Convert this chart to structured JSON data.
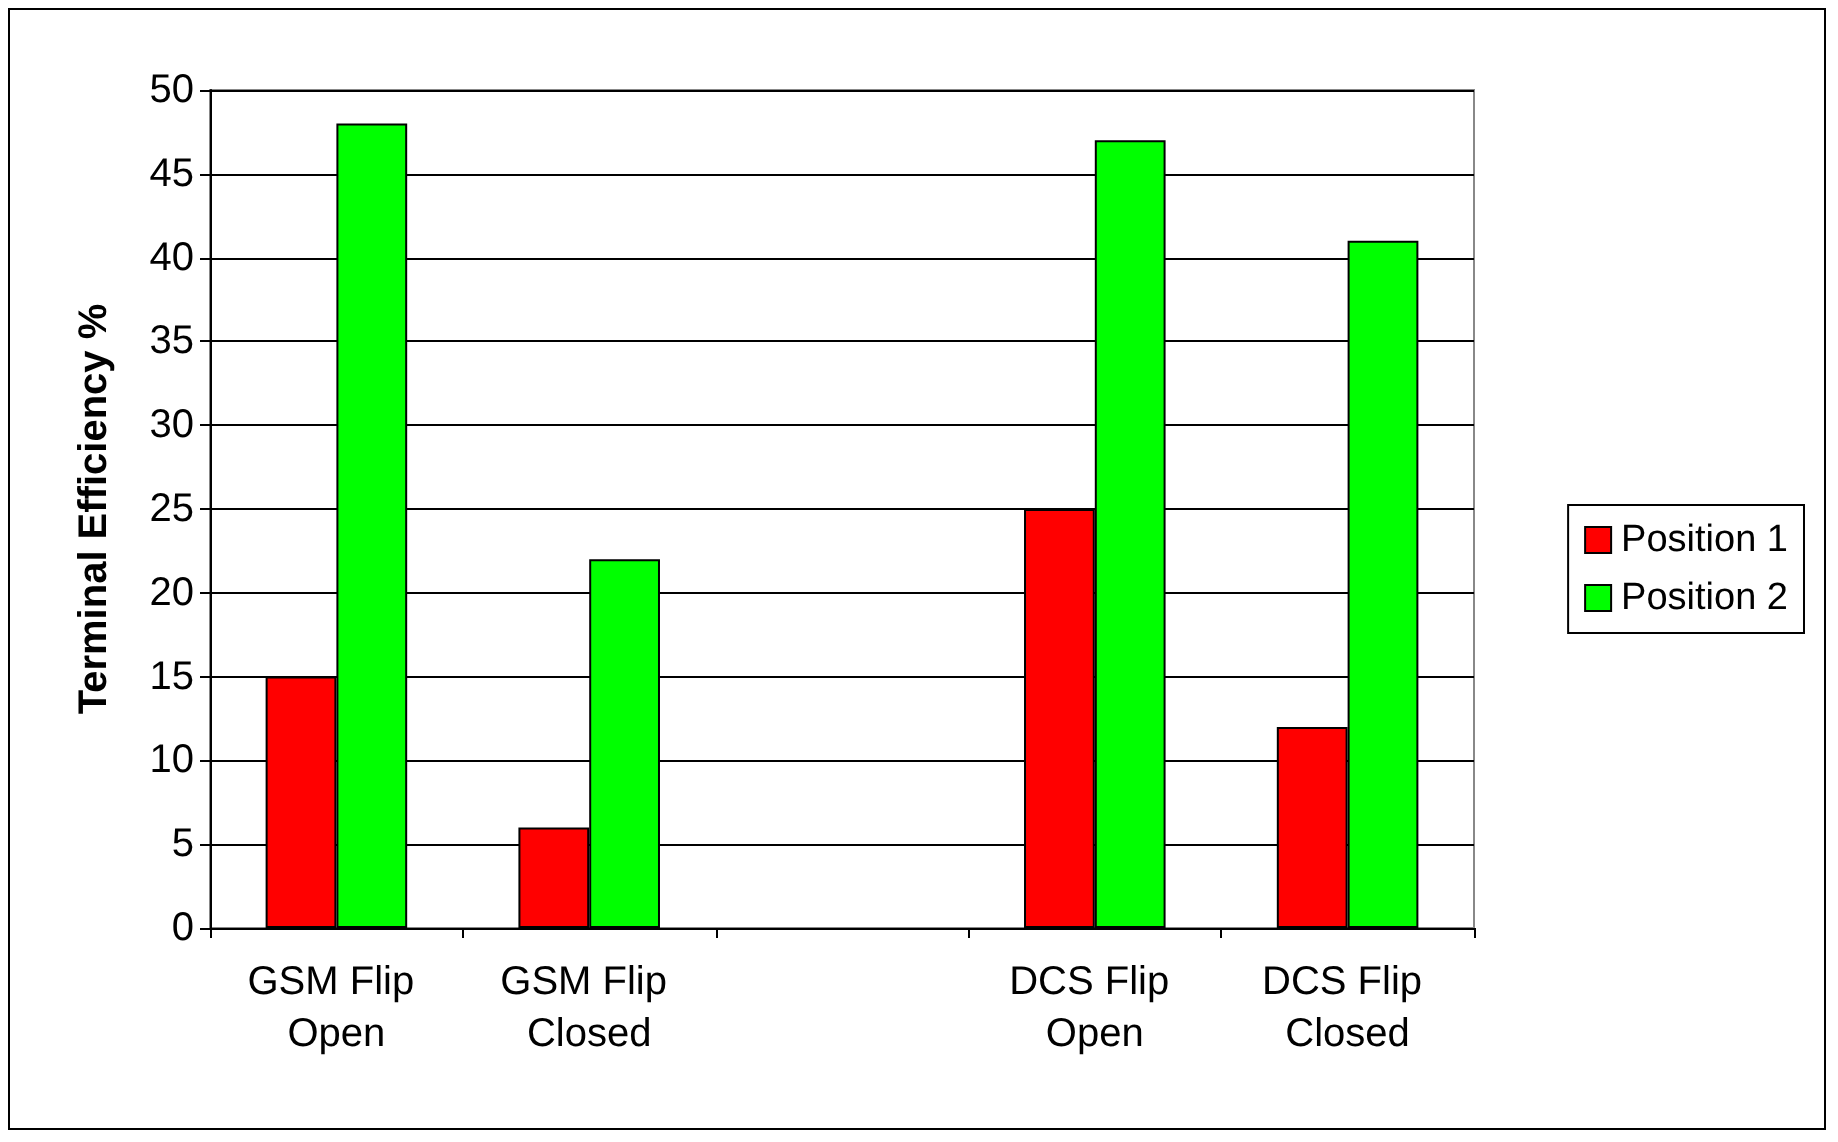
{
  "chart_data": {
    "type": "bar",
    "ylabel": "Terminal Efficiency %",
    "categories": [
      "GSM Flip Open",
      "GSM Flip Closed",
      null,
      "DCS Flip Open",
      "DCS Flip Closed"
    ],
    "series": [
      {
        "name": "Position 1",
        "color": "#ff0000",
        "values": [
          15,
          6,
          null,
          25,
          12
        ]
      },
      {
        "name": "Position 2",
        "color": "#00ff00",
        "values": [
          48,
          22,
          null,
          47,
          41
        ]
      }
    ],
    "ylim": [
      0,
      50
    ],
    "yticks": [
      0,
      5,
      10,
      15,
      20,
      25,
      30,
      35,
      40,
      45,
      50
    ],
    "grid": "y",
    "legend": "right"
  }
}
